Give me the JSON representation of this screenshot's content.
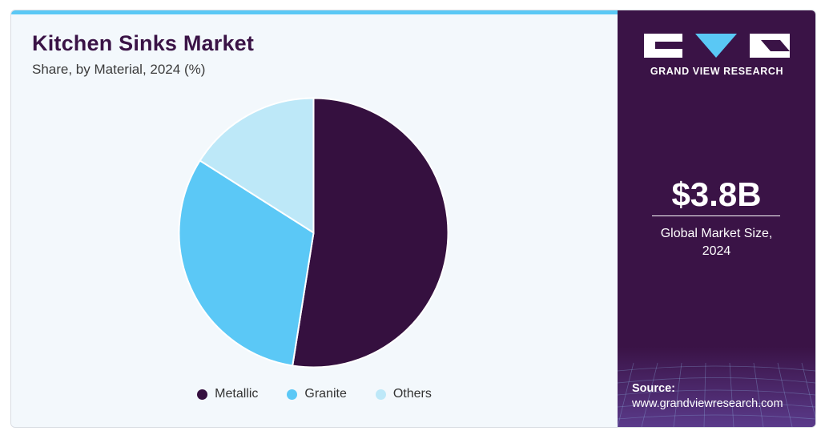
{
  "header": {
    "title": "Kitchen Sinks Market",
    "subtitle": "Share, by Material, 2024 (%)"
  },
  "chart_data": {
    "type": "pie",
    "title": "Kitchen Sinks Market",
    "subtitle": "Share, by Material, 2024 (%)",
    "slices": [
      {
        "label": "Metallic",
        "value": 52.5,
        "color": "#35103f"
      },
      {
        "label": "Granite",
        "value": 31.5,
        "color": "#5bc8f6"
      },
      {
        "label": "Others",
        "value": 16.0,
        "color": "#bde8f8"
      }
    ],
    "start_angle_deg": 0,
    "direction": "clockwise",
    "legend_position": "bottom"
  },
  "sidebar": {
    "brand": "GRAND VIEW RESEARCH",
    "market_size_value": "$3.8B",
    "market_size_label_line1": "Global Market Size,",
    "market_size_label_line2": "2024",
    "source_label": "Source:",
    "source_url": "www.grandviewresearch.com",
    "colors": {
      "background": "#3a1346",
      "accent": "#5ac8f5"
    }
  }
}
